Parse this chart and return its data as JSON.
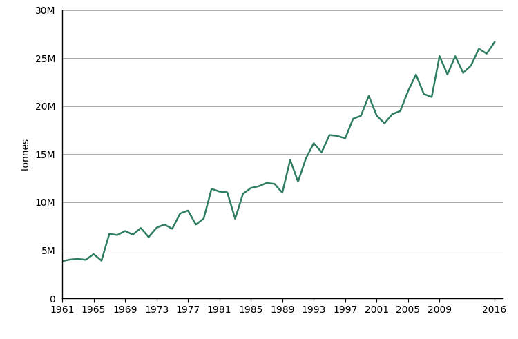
{
  "years": [
    1961,
    1962,
    1963,
    1964,
    1965,
    1966,
    1967,
    1968,
    1969,
    1970,
    1971,
    1972,
    1973,
    1974,
    1975,
    1976,
    1977,
    1978,
    1979,
    1980,
    1981,
    1982,
    1983,
    1984,
    1985,
    1986,
    1987,
    1988,
    1989,
    1990,
    1991,
    1992,
    1993,
    1994,
    1995,
    1996,
    1997,
    1998,
    1999,
    2000,
    2001,
    2002,
    2003,
    2004,
    2005,
    2006,
    2007,
    2008,
    2009,
    2010,
    2011,
    2012,
    2013,
    2014,
    2015,
    2016
  ],
  "values": [
    3868000,
    4034000,
    4108000,
    4009000,
    4601000,
    3924000,
    6717000,
    6587000,
    7012000,
    6639000,
    7319000,
    6378000,
    7349000,
    7684000,
    7240000,
    8831000,
    9144000,
    7679000,
    8302000,
    11402000,
    11116000,
    11027000,
    8283000,
    10882000,
    11487000,
    11671000,
    12010000,
    11922000,
    11000000,
    14406000,
    12150000,
    14565000,
    16157000,
    15207000,
    17002000,
    16906000,
    16651000,
    18694000,
    19007000,
    21079000,
    19024000,
    18227000,
    19183000,
    19500000,
    21591000,
    23295000,
    21276000,
    20958000,
    25214000,
    23311000,
    25214000,
    23473000,
    24231000,
    25979000,
    25478000,
    26674000
  ],
  "line_color": "#2e7d5e",
  "line_width": 1.8,
  "ylabel": "tonnes",
  "ylim": [
    0,
    30000000
  ],
  "xlim_min": 1961,
  "xlim_max": 2017,
  "ytick_step": 5000000,
  "xticks": [
    1961,
    1965,
    1969,
    1973,
    1977,
    1981,
    1985,
    1989,
    1993,
    1997,
    2001,
    2005,
    2009,
    2016
  ],
  "background_color": "#ffffff",
  "grid_color": "#aaaaaa",
  "spine_color": "#000000",
  "ylabel_fontsize": 10,
  "tick_fontsize": 10
}
